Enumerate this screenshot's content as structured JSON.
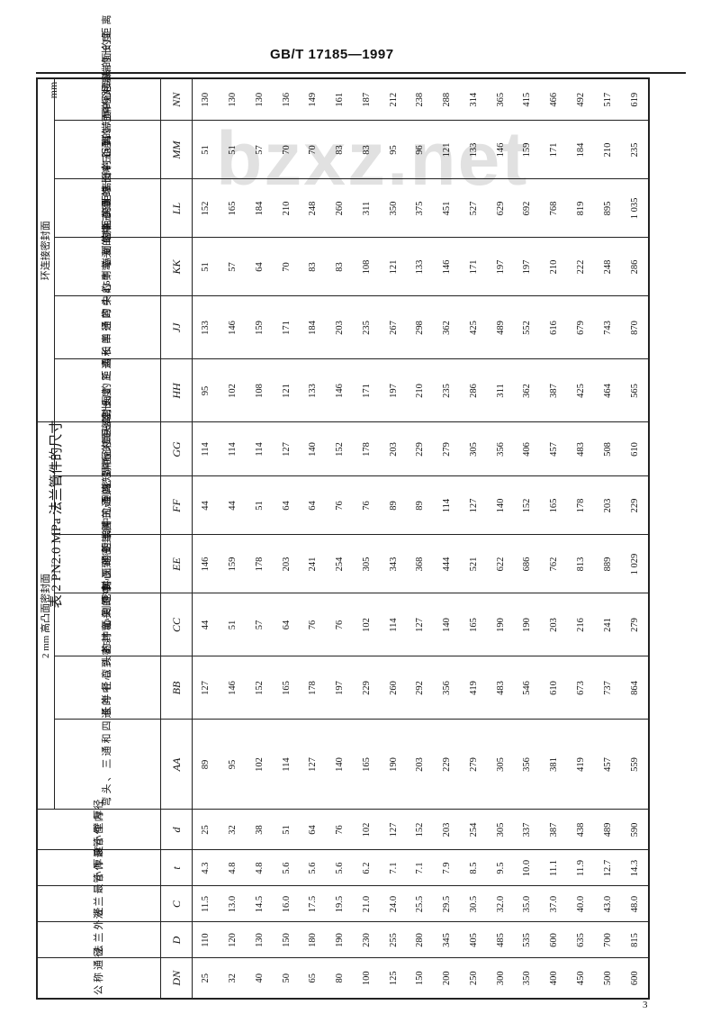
{
  "header": {
    "doc_code": "GB/T 17185—1997",
    "unit": "mm",
    "page_number": "3"
  },
  "watermark": "bzxz.net",
  "table": {
    "title": "表 2  PN2.0 MPa 法兰管件的尺寸",
    "groups": [
      {
        "label": "2 mm 高凸面密封面",
        "span": 6
      },
      {
        "label": "环连接密封面",
        "span": 6
      }
    ],
    "columns": [
      {
        "symbol": "DN",
        "label": "公称通径"
      },
      {
        "symbol": "D",
        "label": "法兰外径"
      },
      {
        "symbol": "C",
        "label": "法兰最小厚度"
      },
      {
        "symbol": "t",
        "label": "管件最小壁厚"
      },
      {
        "symbol": "d",
        "label": "管件内径"
      },
      {
        "symbol": "AA",
        "label": "弯头、三通和四通的中心到密封面的距离"
      },
      {
        "symbol": "BB",
        "label": "长半径弯头的中心到密封面的距离"
      },
      {
        "symbol": "CC",
        "label": "45°弯头的中心到密封面的距离"
      },
      {
        "symbol": "EE",
        "label": "斜三通的长中心到密封面的距离"
      },
      {
        "symbol": "FF",
        "label": "斜三通的短中心到密封面的距离"
      },
      {
        "symbol": "GG",
        "label": "异径接头的长度"
      },
      {
        "symbol": "HH",
        "label": "弯头、三通和四通的中心到端面的距离"
      },
      {
        "symbol": "JJ",
        "label": "长半径弯头的中心到端面的距离"
      },
      {
        "symbol": "KK",
        "label": "45°弯头的中心到端面的距离"
      },
      {
        "symbol": "LL",
        "label": "斜三通的长中心到端面的距离"
      },
      {
        "symbol": "MM",
        "label": "斜三通的短中心到端面的距离"
      },
      {
        "symbol": "NN",
        "label": "异径接头的长度"
      }
    ],
    "rows": [
      [
        "25",
        "110",
        "11.5",
        "4.3",
        "25",
        "89",
        "127",
        "44",
        "146",
        "44",
        "114",
        "95",
        "133",
        "51",
        "152",
        "51",
        "130"
      ],
      [
        "32",
        "120",
        "13.0",
        "4.8",
        "32",
        "95",
        "146",
        "51",
        "159",
        "44",
        "114",
        "102",
        "146",
        "57",
        "165",
        "51",
        "130"
      ],
      [
        "40",
        "130",
        "14.5",
        "4.8",
        "38",
        "102",
        "152",
        "57",
        "178",
        "51",
        "114",
        "108",
        "159",
        "64",
        "184",
        "57",
        "130"
      ],
      [
        "50",
        "150",
        "16.0",
        "5.6",
        "51",
        "114",
        "165",
        "64",
        "203",
        "64",
        "127",
        "121",
        "171",
        "70",
        "210",
        "70",
        "136"
      ],
      [
        "65",
        "180",
        "17.5",
        "5.6",
        "64",
        "127",
        "178",
        "76",
        "241",
        "64",
        "140",
        "133",
        "184",
        "83",
        "248",
        "70",
        "149"
      ],
      [
        "80",
        "190",
        "19.5",
        "5.6",
        "76",
        "140",
        "197",
        "76",
        "254",
        "76",
        "152",
        "146",
        "203",
        "83",
        "260",
        "83",
        "161"
      ],
      [
        "100",
        "230",
        "21.0",
        "6.2",
        "102",
        "165",
        "229",
        "102",
        "305",
        "76",
        "178",
        "171",
        "235",
        "108",
        "311",
        "83",
        "187"
      ],
      [
        "125",
        "255",
        "24.0",
        "7.1",
        "127",
        "190",
        "260",
        "114",
        "343",
        "89",
        "203",
        "197",
        "267",
        "121",
        "350",
        "95",
        "212"
      ],
      [
        "150",
        "280",
        "25.5",
        "7.1",
        "152",
        "203",
        "292",
        "127",
        "368",
        "89",
        "229",
        "210",
        "298",
        "133",
        "375",
        "96",
        "238"
      ],
      [
        "200",
        "345",
        "29.5",
        "7.9",
        "203",
        "229",
        "356",
        "140",
        "444",
        "114",
        "279",
        "235",
        "362",
        "146",
        "451",
        "121",
        "288"
      ],
      [
        "250",
        "405",
        "30.5",
        "8.5",
        "254",
        "279",
        "419",
        "165",
        "521",
        "127",
        "305",
        "286",
        "425",
        "171",
        "527",
        "133",
        "314"
      ],
      [
        "300",
        "485",
        "32.0",
        "9.5",
        "305",
        "305",
        "483",
        "190",
        "622",
        "140",
        "356",
        "311",
        "489",
        "197",
        "629",
        "146",
        "365"
      ],
      [
        "350",
        "535",
        "35.0",
        "10.0",
        "337",
        "356",
        "546",
        "190",
        "686",
        "152",
        "406",
        "362",
        "552",
        "197",
        "692",
        "159",
        "415"
      ],
      [
        "400",
        "600",
        "37.0",
        "11.1",
        "387",
        "381",
        "610",
        "203",
        "762",
        "165",
        "457",
        "387",
        "616",
        "210",
        "768",
        "171",
        "466"
      ],
      [
        "450",
        "635",
        "40.0",
        "11.9",
        "438",
        "419",
        "673",
        "216",
        "813",
        "178",
        "483",
        "425",
        "679",
        "222",
        "819",
        "184",
        "492"
      ],
      [
        "500",
        "700",
        "43.0",
        "12.7",
        "489",
        "457",
        "737",
        "241",
        "889",
        "203",
        "508",
        "464",
        "743",
        "248",
        "895",
        "210",
        "517"
      ],
      [
        "600",
        "815",
        "48.0",
        "14.3",
        "590",
        "559",
        "864",
        "279",
        "1 029",
        "229",
        "610",
        "565",
        "870",
        "286",
        "1 035",
        "235",
        "619"
      ]
    ]
  }
}
